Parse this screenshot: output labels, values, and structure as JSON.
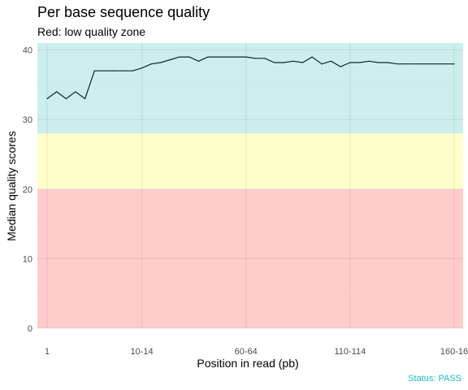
{
  "chart_data": {
    "type": "line",
    "title": "Per base sequence quality",
    "subtitle": "Red: low quality zone",
    "xlabel": "Position in read (pb)",
    "ylabel": "Median quality scores",
    "caption": "Status: PASS",
    "ylim": [
      0,
      41
    ],
    "yticks": [
      0,
      10,
      20,
      30,
      40
    ],
    "x_tick_labels": [
      "1",
      "10-14",
      "60-64",
      "110-114",
      "160-16"
    ],
    "x_tick_positions": [
      1,
      11,
      22,
      33,
      44
    ],
    "zones": [
      {
        "from": 0,
        "to": 20,
        "color": "#ffcccc"
      },
      {
        "from": 20,
        "to": 28,
        "color": "#ffffcc"
      },
      {
        "from": 28,
        "to": 41,
        "color": "#cceeee"
      }
    ],
    "line_color": "#0b2b2b",
    "grid": true,
    "x": [
      1,
      2,
      3,
      4,
      5,
      6,
      7,
      8,
      9,
      10,
      11,
      12,
      13,
      14,
      15,
      16,
      17,
      18,
      19,
      20,
      21,
      22,
      23,
      24,
      25,
      26,
      27,
      28,
      29,
      30,
      31,
      32,
      33,
      34,
      35,
      36,
      37,
      38,
      39,
      40,
      41,
      42,
      43,
      44
    ],
    "values": [
      33,
      34,
      33,
      34,
      33,
      37,
      37,
      37,
      37,
      37,
      37.4,
      38,
      38.2,
      38.6,
      39,
      39,
      38.4,
      39,
      39,
      39,
      39,
      39,
      38.8,
      38.8,
      38.2,
      38.2,
      38.4,
      38.2,
      39,
      38,
      38.4,
      37.6,
      38.2,
      38.2,
      38.4,
      38.2,
      38.2,
      38,
      38,
      38,
      38,
      38,
      38,
      38
    ]
  }
}
